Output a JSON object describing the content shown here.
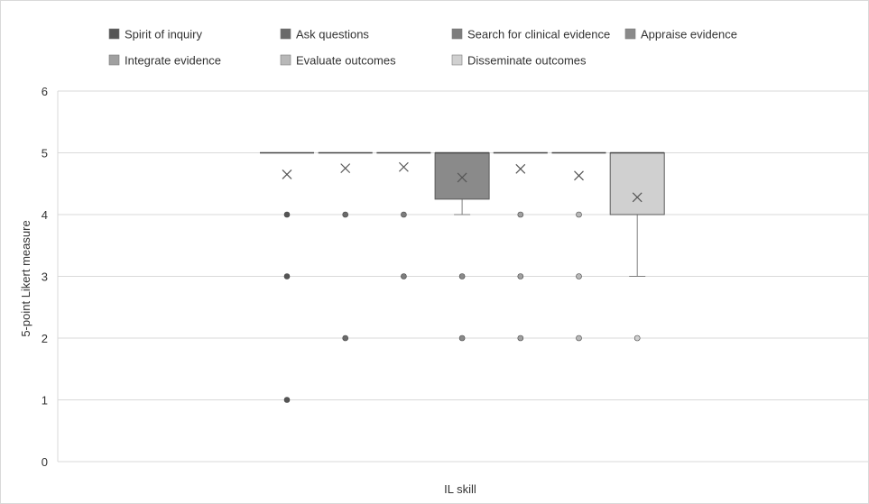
{
  "chart_data": {
    "type": "box",
    "title": "",
    "xlabel": "IL skill",
    "ylabel": "5-point Likert measure",
    "ylim": [
      0,
      6
    ],
    "yticks": [
      0,
      1,
      2,
      3,
      4,
      5,
      6
    ],
    "grid": true,
    "legend_position": "top",
    "series": [
      {
        "name": "Spirit of inquiry",
        "color": "#555555",
        "q1": 5,
        "median": 5,
        "q3": 5,
        "whisker_low": 5,
        "whisker_high": 5,
        "mean": 4.65,
        "outliers": [
          4,
          3,
          1
        ]
      },
      {
        "name": "Ask questions",
        "color": "#6a6a6a",
        "q1": 5,
        "median": 5,
        "q3": 5,
        "whisker_low": 5,
        "whisker_high": 5,
        "mean": 4.75,
        "outliers": [
          4,
          2
        ]
      },
      {
        "name": "Search for clinical evidence",
        "color": "#7d7d7d",
        "q1": 5,
        "median": 5,
        "q3": 5,
        "whisker_low": 5,
        "whisker_high": 5,
        "mean": 4.77,
        "outliers": [
          4,
          3
        ]
      },
      {
        "name": "Appraise evidence",
        "color": "#8a8a8a",
        "q1": 4.25,
        "median": 5,
        "q3": 5,
        "whisker_low": 4,
        "whisker_high": 5,
        "mean": 4.6,
        "outliers": [
          3,
          2
        ]
      },
      {
        "name": "Integrate evidence",
        "color": "#a0a0a0",
        "q1": 5,
        "median": 5,
        "q3": 5,
        "whisker_low": 5,
        "whisker_high": 5,
        "mean": 4.74,
        "outliers": [
          4,
          3,
          2
        ]
      },
      {
        "name": "Evaluate outcomes",
        "color": "#b8b8b8",
        "q1": 5,
        "median": 5,
        "q3": 5,
        "whisker_low": 5,
        "whisker_high": 5,
        "mean": 4.63,
        "outliers": [
          4,
          3,
          2
        ]
      },
      {
        "name": "Disseminate outcomes",
        "color": "#d0d0d0",
        "q1": 4,
        "median": 5,
        "q3": 5,
        "whisker_low": 3,
        "whisker_high": 5,
        "mean": 4.28,
        "outliers": [
          2
        ]
      }
    ]
  }
}
